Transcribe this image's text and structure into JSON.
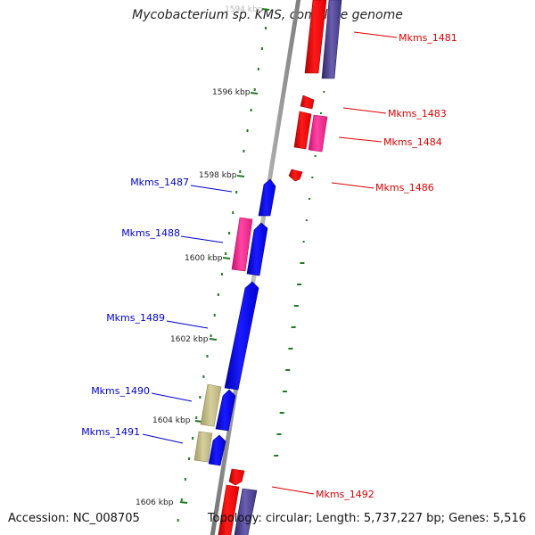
{
  "title": "Mycobacterium sp. KMS, complete genome",
  "footer": {
    "accession": "Accession: NC_008705",
    "summary": "Topology: circular; Length: 5,737,227 bp; Genes: 5,516"
  },
  "colors": {
    "backbone": "#8a8a8a",
    "tick": "#1f7a1f",
    "red_gene": "#ff0000",
    "magenta_gene": "#ff3399",
    "navy_gene": "#4b3f8f",
    "blue_gene": "#0000ff",
    "olive_gene": "#c8c08a",
    "red_label": "#dd0000",
    "blue_label": "#0000cc"
  },
  "ticks": [
    "1594 kbp",
    "1596 kbp",
    "1598 kbp",
    "1600 kbp",
    "1602 kbp",
    "1604 kbp",
    "1606 kbp"
  ],
  "gene_labels": {
    "right": [
      "Mkms_1481",
      "Mkms_1483",
      "Mkms_1484",
      "Mkms_1486",
      "Mkms_1492"
    ],
    "left": [
      "Mkms_1487",
      "Mkms_1488",
      "Mkms_1489",
      "Mkms_1490",
      "Mkms_1491"
    ]
  }
}
